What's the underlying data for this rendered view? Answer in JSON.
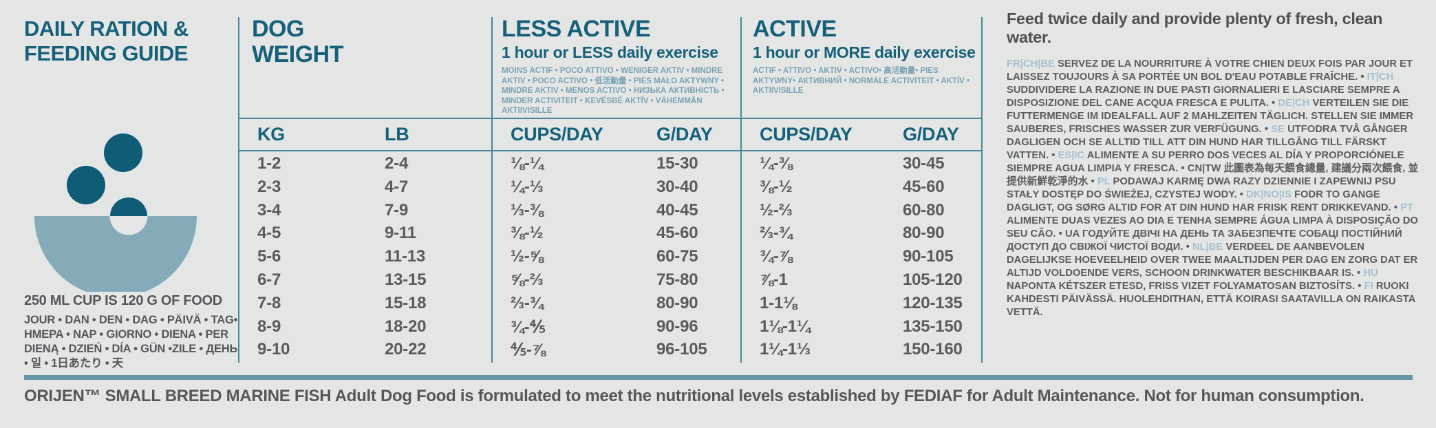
{
  "colors": {
    "background": "#e4e6e6",
    "teal_heading": "#16607a",
    "rule_teal": "#4d8397",
    "thick_rule": "#6496a6",
    "bowl": "#85abb9",
    "kibble": "#0f5c77",
    "body_gray": "#58595b",
    "language_code_blue": "#a6c0cd"
  },
  "left": {
    "icon": "dog-food-bowl-icon",
    "title_line1": "DAILY RATION &",
    "title_line2": "FEEDING GUIDE",
    "cup_note": "250 ML CUP IS 120 G OF FOOD",
    "day_words": "JOUR • DAN • DEN • DAG • PÄIVÄ • TAG• HMEPA • NAP • GIORNO • DIENA • PER DIENĄ • DZIEŃ • DÍA • GÜN •ZILE • ДЕНЬ • 일 • 1日あたり • 天"
  },
  "table": {
    "sections": {
      "weight": {
        "title_line1": "DOG",
        "title_line2": "WEIGHT"
      },
      "less_active": {
        "title": "LESS ACTIVE",
        "subtitle": "1 hour or LESS daily exercise",
        "languages": "MOINS ACTIF • POCO ATTIVO • WENIGER AKTIV • MINDRE AKTIV • POCO ACTIVO • 低活動量 • PIES MAŁO AKTYWNY • MINDRE AKTIV • MENOS ACTIVO • НИЗЬКА АКТИВНІСТЬ • MINDER ACTIVITEIT • KEVÉSBÉ AKTÍV • VÄHEMMÄN AKTIIVISILLE"
      },
      "active": {
        "title": "ACTIVE",
        "subtitle": "1 hour or MORE daily exercise",
        "languages": "ACTIF • ATTIVO • AKTIV • ACTIVO• 高活動量• PIES AKTYWNY• АКТИВНИЙ • NORMALE ACTIVITEIT • AKTÍV • AKTIIVISILLE"
      }
    },
    "col_headers": [
      "KG",
      "LB",
      "CUPS/DAY",
      "G/DAY",
      "CUPS/DAY",
      "G/DAY"
    ],
    "rows": [
      [
        "1-2",
        "2-4",
        "⅛-¼",
        "15-30",
        "¼-⅜",
        "30-45"
      ],
      [
        "2-3",
        "4-7",
        "¼-⅓",
        "30-40",
        "⅜-½",
        "45-60"
      ],
      [
        "3-4",
        "7-9",
        "⅓-⅜",
        "40-45",
        "½-⅔",
        "60-80"
      ],
      [
        "4-5",
        "9-11",
        "⅜-½",
        "45-60",
        "⅔-¾",
        "80-90"
      ],
      [
        "5-6",
        "11-13",
        "½-⅝",
        "60-75",
        "¾-⅞",
        "90-105"
      ],
      [
        "6-7",
        "13-15",
        "⅝-⅔",
        "75-80",
        "⅞-1",
        "105-120"
      ],
      [
        "7-8",
        "15-18",
        "⅔-¾",
        "80-90",
        "1-1⅛",
        "120-135"
      ],
      [
        "8-9",
        "18-20",
        "¾-⅘",
        "90-96",
        "1⅛-1¼",
        "135-150"
      ],
      [
        "9-10",
        "20-22",
        "⅘-⅞",
        "96-105",
        "1¼-1⅓",
        "150-160"
      ]
    ]
  },
  "right": {
    "headline": "Feed twice daily and provide plenty of fresh, clean water.",
    "segments": [
      {
        "code": "FR|CH|BE",
        "light": true,
        "text": "SERVEZ DE LA NOURRITURE À VOTRE CHIEN DEUX FOIS PAR JOUR ET LAISSEZ TOUJOURS À SA PORTÉE UN BOL D'EAU POTABLE FRAÎCHE."
      },
      {
        "code": "IT|CH",
        "light": true,
        "text": "SUDDIVIDERE LA RAZIONE IN DUE PASTI GIORNALIERI E LASCIARE SEMPRE A DISPOSIZIONE DEL CANE ACQUA FRESCA E PULITA."
      },
      {
        "code": "DE|CH",
        "light": true,
        "text": "VERTEILEN SIE DIE FUTTERMENGE IM IDEALFALL AUF 2 MAHLZEITEN TÄGLICH. STELLEN SIE IMMER SAUBERES, FRISCHES WASSER ZUR VERFÜGUNG."
      },
      {
        "code": "SE",
        "light": true,
        "text": "UTFODRA TVÅ GÅNGER DAGLIGEN OCH SE ALLTID TILL ATT DIN HUND HAR TILLGÅNG TILL FÄRSKT VATTEN."
      },
      {
        "code": "ES|IC",
        "light": true,
        "text": "ALIMENTE A SU PERRO DOS VECES AL DÍA Y PROPORCIÓNELE SIEMPRE AGUA LIMPIA Y FRESCA."
      },
      {
        "code": "CN|TW",
        "light": false,
        "text": "此圖表為每天餵食總量, 建議分兩次餵食, 並提供新鮮乾淨的水"
      },
      {
        "code": "PL",
        "light": true,
        "text": "PODAWAJ KARMĘ DWA RAZY DZIENNIE I ZAPEWNIJ PSU STAŁY DOSTĘP DO ŚWIEŻEJ, CZYSTEJ WODY."
      },
      {
        "code": "DK|NO|IS",
        "light": true,
        "text": "FODR TO GANGE DAGLIGT, OG SØRG ALTID FOR AT DIN HUND HAR FRISK RENT DRIKKEVAND."
      },
      {
        "code": "PT",
        "light": true,
        "text": "ALIMENTE DUAS VEZES AO DIA E TENHA SEMPRE ÁGUA LIMPA À DISPOSIÇÃO DO SEU CÃO."
      },
      {
        "code": "UA",
        "light": false,
        "text": "ГОДУЙТЕ ДВІЧІ НА ДЕНЬ ТА ЗАБЕЗПЕЧТЕ СОБАЦІ ПОСТІЙНИЙ ДОСТУП ДО СВІЖОЇ ЧИСТОЇ ВОДИ."
      },
      {
        "code": "NL|BE",
        "light": true,
        "text": "VERDEEL DE AANBEVOLEN DAGELIJKSE HOEVEELHEID OVER TWEE MAALTIJDEN PER DAG EN ZORG DAT ER ALTIJD VOLDOENDE VERS, SCHOON DRINKWATER BESCHIKBAAR IS."
      },
      {
        "code": "HU",
        "light": true,
        "text": "NAPONTA KÉTSZER ETESD, FRISS VIZET FOLYAMATOSAN BIZTOSÍTS."
      },
      {
        "code": "FI",
        "light": true,
        "text": "RUOKI KAHDESTI PÄIVÄSSÄ. HUOLEHDITHAN, ETTÄ KOIRASI SAATAVILLA ON RAIKASTA VETTÄ."
      }
    ]
  },
  "footer": {
    "text": "ORIJEN™ SMALL BREED MARINE FISH Adult Dog Food is formulated to meet the nutritional levels established by FEDIAF for Adult Maintenance. Not for human consumption."
  }
}
